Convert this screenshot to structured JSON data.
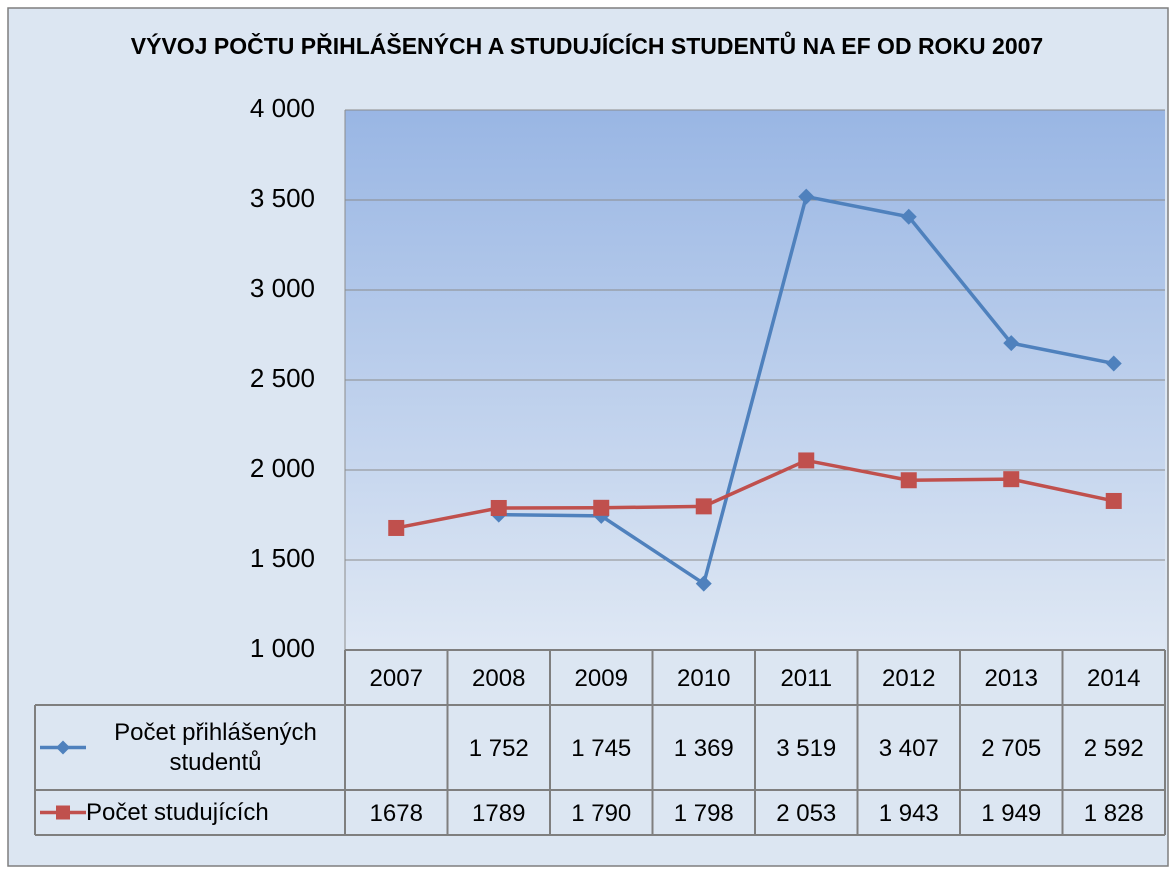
{
  "chart_data": {
    "type": "line",
    "title": "VÝVOJ POČTU PŘIHLÁŠENÝCH A STUDUJÍCÍCH STUDENTŮ NA EF OD ROKU 2007",
    "categories": [
      "2007",
      "2008",
      "2009",
      "2010",
      "2011",
      "2012",
      "2013",
      "2014"
    ],
    "series": [
      {
        "name": "Počet přihlášených studentů",
        "color": "#4f81bd",
        "marker": "diamond",
        "values": [
          null,
          1752,
          1745,
          1369,
          3519,
          3407,
          2705,
          2592
        ],
        "value_labels": [
          null,
          "1 752",
          "1 745",
          "1 369",
          "3 519",
          "3 407",
          "2 705",
          "2 592"
        ]
      },
      {
        "name": "Počet studujících",
        "color": "#c0504d",
        "marker": "square",
        "values": [
          1678,
          1789,
          1790,
          1798,
          2053,
          1943,
          1949,
          1828
        ],
        "value_labels": [
          "1678",
          "1789",
          "1 790",
          "1 798",
          "2 053",
          "1 943",
          "1 949",
          "1 828"
        ]
      }
    ],
    "ylim": [
      1000,
      4000
    ],
    "yticks": [
      {
        "value": 1000,
        "label": "1 000"
      },
      {
        "value": 1500,
        "label": "1 500"
      },
      {
        "value": 2000,
        "label": "2 000"
      },
      {
        "value": 2500,
        "label": "2 500"
      },
      {
        "value": 3000,
        "label": "3 000"
      },
      {
        "value": 3500,
        "label": "3 500"
      },
      {
        "value": 4000,
        "label": "4 000"
      }
    ],
    "grid": true,
    "data_table": true
  }
}
